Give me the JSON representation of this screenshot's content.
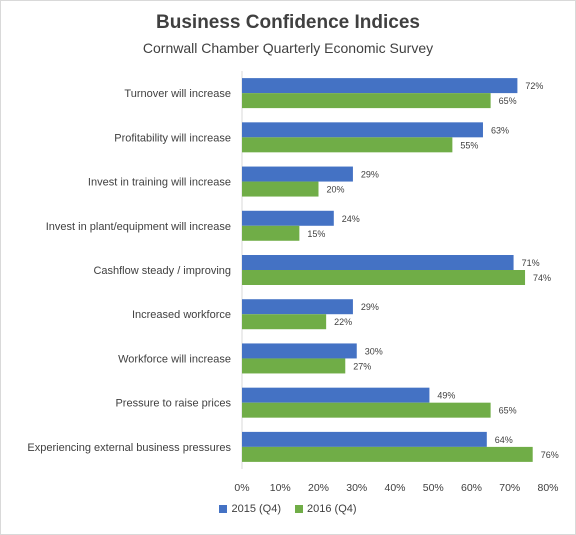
{
  "chart_data": {
    "type": "bar",
    "orientation": "horizontal",
    "title": "Business Confidence Indices",
    "subtitle": "Cornwall Chamber Quarterly Economic Survey",
    "categories": [
      "Turnover will increase",
      "Profitability will increase",
      "Invest in training will increase",
      "Invest in plant/equipment will increase",
      "Cashflow steady / improving",
      "Increased workforce",
      "Workforce will increase",
      "Pressure to raise prices",
      "Experiencing external business pressures"
    ],
    "series": [
      {
        "name": "2015 (Q4)",
        "color": "#4472c4",
        "values": [
          72,
          63,
          29,
          24,
          71,
          29,
          30,
          49,
          64
        ]
      },
      {
        "name": "2016 (Q4)",
        "color": "#70ad47",
        "values": [
          65,
          55,
          20,
          15,
          74,
          22,
          27,
          65,
          76
        ]
      }
    ],
    "xlim": [
      0,
      80
    ],
    "xticks": [
      0,
      10,
      20,
      30,
      40,
      50,
      60,
      70,
      80
    ],
    "value_suffix": "%",
    "grid": false,
    "legend_position": "bottom"
  }
}
